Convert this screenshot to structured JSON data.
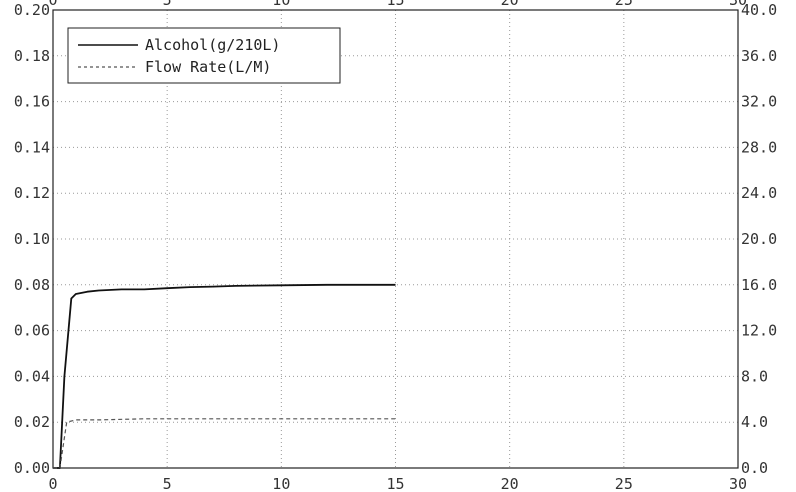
{
  "chart_data": {
    "type": "line",
    "title": "",
    "xlabel": "",
    "ylabel": "",
    "xlim": [
      0,
      30
    ],
    "ylim_left": [
      0,
      0.2
    ],
    "ylim_right": [
      0,
      40
    ],
    "grid": true,
    "legend_position": "top-left",
    "x_ticks": [
      "0",
      "5",
      "10",
      "15",
      "20",
      "25",
      "30"
    ],
    "y_ticks_left": [
      "0.00",
      "0.02",
      "0.04",
      "0.06",
      "0.08",
      "0.10",
      "0.12",
      "0.14",
      "0.16",
      "0.18",
      "0.20"
    ],
    "y_ticks_right": [
      "0.0",
      "4.0",
      "8.0",
      "12.0",
      "16.0",
      "20.0",
      "24.0",
      "28.0",
      "32.0",
      "36.0",
      "40.0"
    ],
    "series": [
      {
        "name": "Alcohol(g/210L)",
        "axis": "left",
        "style": "solid",
        "color": "#111111",
        "x": [
          0,
          0.3,
          0.5,
          0.8,
          1.0,
          1.5,
          2,
          3,
          4,
          5,
          6,
          7,
          8,
          10,
          12,
          15
        ],
        "y": [
          0.0,
          0.0,
          0.04,
          0.074,
          0.076,
          0.077,
          0.0775,
          0.078,
          0.078,
          0.0785,
          0.079,
          0.0792,
          0.0795,
          0.0798,
          0.08,
          0.08
        ]
      },
      {
        "name": "Flow Rate(L/M)",
        "axis": "right",
        "style": "dashed",
        "color": "#555555",
        "x": [
          0,
          0.3,
          0.6,
          1.0,
          2,
          4,
          6,
          8,
          10,
          12,
          15
        ],
        "y": [
          0.0,
          0.0,
          4.0,
          4.2,
          4.2,
          4.3,
          4.3,
          4.3,
          4.3,
          4.3,
          4.3
        ]
      }
    ]
  }
}
